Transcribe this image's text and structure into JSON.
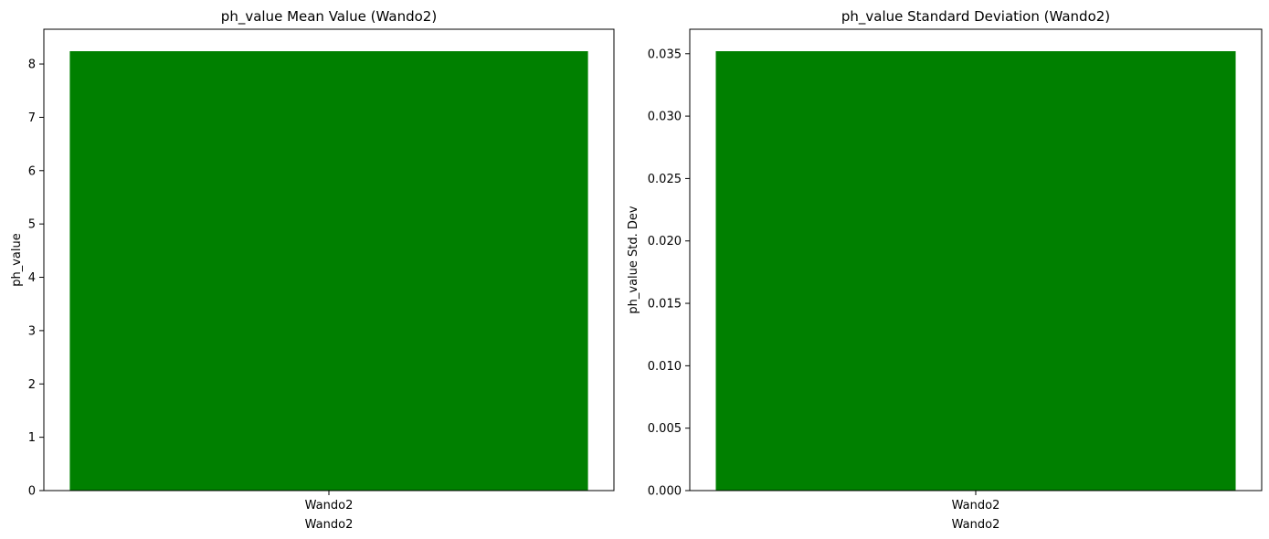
{
  "chart_data": [
    {
      "type": "bar",
      "title": "ph_value Mean Value (Wando2)",
      "categories": [
        "Wando2"
      ],
      "values": [
        8.24
      ],
      "xlabel": "Wando2",
      "ylabel": "ph_value",
      "ylim": [
        0,
        8.652
      ],
      "yticks": [
        0,
        1,
        2,
        3,
        4,
        5,
        6,
        7,
        8
      ],
      "ytick_labels": [
        "0",
        "1",
        "2",
        "3",
        "4",
        "5",
        "6",
        "7",
        "8"
      ],
      "bar_color": "#008000",
      "grid": false,
      "legend": null
    },
    {
      "type": "bar",
      "title": "ph_value Standard Deviation (Wando2)",
      "categories": [
        "Wando2"
      ],
      "values": [
        0.0352
      ],
      "xlabel": "Wando2",
      "ylabel": "ph_value Std. Dev",
      "ylim": [
        0,
        0.03696
      ],
      "yticks": [
        0,
        0.005,
        0.01,
        0.015,
        0.02,
        0.025,
        0.03,
        0.035
      ],
      "ytick_labels": [
        "0.000",
        "0.005",
        "0.010",
        "0.015",
        "0.020",
        "0.025",
        "0.030",
        "0.035"
      ],
      "bar_color": "#008000",
      "grid": false,
      "legend": null
    }
  ]
}
